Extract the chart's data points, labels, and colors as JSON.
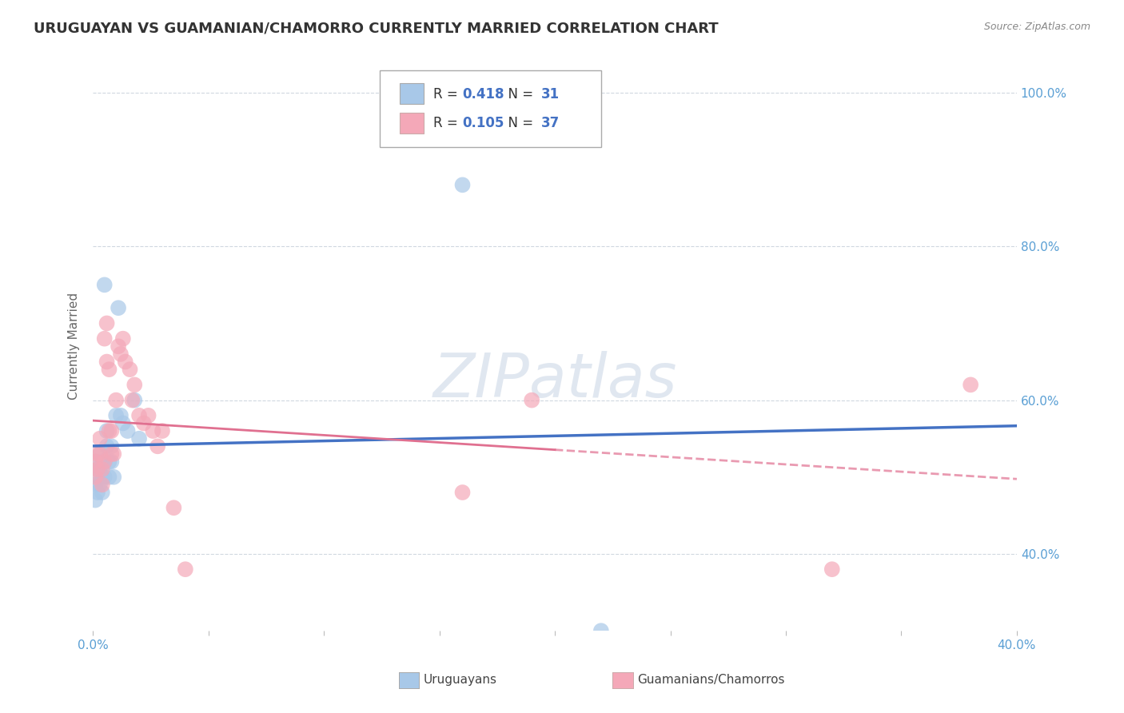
{
  "title": "URUGUAYAN VS GUAMANIAN/CHAMORRO CURRENTLY MARRIED CORRELATION CHART",
  "source": "Source: ZipAtlas.com",
  "ylabel": "Currently Married",
  "r_uruguayan": 0.418,
  "n_uruguayan": 31,
  "r_guamanian": 0.105,
  "n_guamanian": 37,
  "blue_scatter_color": "#a8c8e8",
  "pink_scatter_color": "#f4a8b8",
  "blue_line_color": "#4472c4",
  "pink_line_color": "#e07090",
  "label_text_color": "#333333",
  "value_text_color": "#4472c4",
  "tick_color": "#5a9fd4",
  "watermark": "ZIPatlas",
  "uruguayan_x": [
    0.001,
    0.001,
    0.001,
    0.002,
    0.002,
    0.002,
    0.003,
    0.003,
    0.003,
    0.004,
    0.004,
    0.004,
    0.005,
    0.005,
    0.005,
    0.006,
    0.006,
    0.007,
    0.007,
    0.008,
    0.008,
    0.009,
    0.01,
    0.011,
    0.012,
    0.013,
    0.015,
    0.018,
    0.02,
    0.16,
    0.22
  ],
  "uruguayan_y": [
    0.52,
    0.49,
    0.47,
    0.51,
    0.48,
    0.5,
    0.53,
    0.51,
    0.49,
    0.52,
    0.5,
    0.48,
    0.5,
    0.52,
    0.75,
    0.56,
    0.54,
    0.52,
    0.5,
    0.54,
    0.52,
    0.5,
    0.58,
    0.72,
    0.58,
    0.57,
    0.56,
    0.6,
    0.55,
    0.88,
    0.3
  ],
  "guamanian_x": [
    0.001,
    0.001,
    0.002,
    0.002,
    0.003,
    0.003,
    0.004,
    0.004,
    0.005,
    0.005,
    0.006,
    0.006,
    0.007,
    0.007,
    0.008,
    0.008,
    0.009,
    0.01,
    0.011,
    0.012,
    0.013,
    0.014,
    0.016,
    0.017,
    0.018,
    0.02,
    0.022,
    0.024,
    0.026,
    0.028,
    0.03,
    0.035,
    0.04,
    0.16,
    0.19,
    0.32,
    0.38
  ],
  "guamanian_y": [
    0.52,
    0.5,
    0.53,
    0.51,
    0.55,
    0.53,
    0.51,
    0.49,
    0.68,
    0.52,
    0.7,
    0.65,
    0.64,
    0.56,
    0.56,
    0.53,
    0.53,
    0.6,
    0.67,
    0.66,
    0.68,
    0.65,
    0.64,
    0.6,
    0.62,
    0.58,
    0.57,
    0.58,
    0.56,
    0.54,
    0.56,
    0.46,
    0.38,
    0.48,
    0.6,
    0.38,
    0.62
  ],
  "xlim": [
    0.0,
    0.4
  ],
  "ylim": [
    0.3,
    1.04
  ],
  "yticks": [
    0.4,
    0.6,
    0.8,
    1.0
  ],
  "ytick_labels": [
    "40.0%",
    "60.0%",
    "80.0%",
    "100.0%"
  ],
  "xtick_positions": [
    0.0,
    0.05,
    0.1,
    0.15,
    0.2,
    0.25,
    0.3,
    0.35,
    0.4
  ],
  "xtick_labels": [
    "0.0%",
    "",
    "",
    "",
    "",
    "",
    "",
    "",
    "40.0%"
  ],
  "grid_color": "#d0d8e0",
  "background_color": "#ffffff",
  "title_fontsize": 13,
  "axis_label_fontsize": 11,
  "tick_fontsize": 11,
  "watermark_color": "#c8d4e4",
  "watermark_fontsize": 55
}
